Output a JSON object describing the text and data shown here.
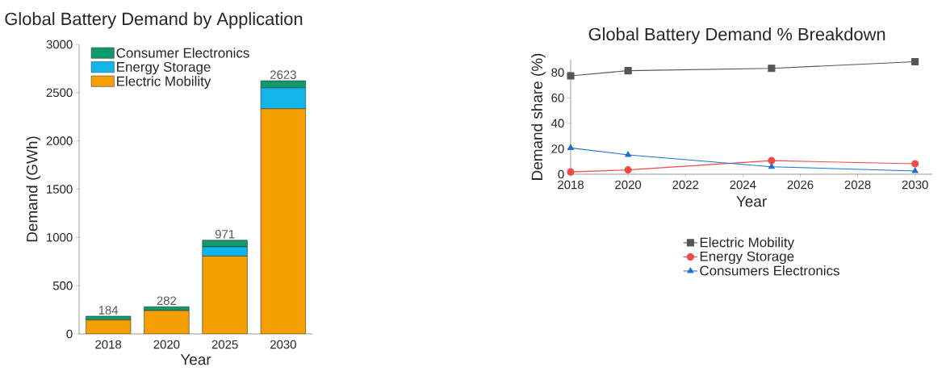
{
  "chart_data": [
    {
      "type": "bar",
      "title": "Global Battery Demand by Application",
      "xlabel": "Year",
      "ylabel": "Demand (GWh)",
      "categories": [
        "2018",
        "2020",
        "2025",
        "2030"
      ],
      "stacked": true,
      "series": [
        {
          "name": "Electric Mobility",
          "color": "#f5a000",
          "values": [
            144,
            242,
            806,
            2333
          ]
        },
        {
          "name": "Energy Storage",
          "color": "#12b5ea",
          "values": [
            null,
            null,
            97,
            217
          ]
        },
        {
          "name": "Consumer Electronics",
          "color": "#0f9a6e",
          "values": [
            40,
            40,
            68,
            73
          ]
        }
      ],
      "totals": [
        "184",
        "282",
        "971",
        "2623"
      ],
      "ylim": [
        0,
        3000
      ],
      "yticks": [
        0,
        500,
        1000,
        1500,
        2000,
        2500,
        3000
      ],
      "legend": "top left"
    },
    {
      "type": "line",
      "title": "Global Battery Demand % Breakdown",
      "xlabel": "Year",
      "ylabel": "Demand share (%)",
      "x": [
        2018,
        2020,
        2025,
        2030
      ],
      "line_style": "solid",
      "series": [
        {
          "name": "Electric Mobility",
          "color": "#555555",
          "marker": "square",
          "values": [
            77.3,
            81.4,
            83.2,
            88.4
          ]
        },
        {
          "name": "Energy Storage",
          "color": "#f04848",
          "marker": "circle",
          "values": [
            1.8,
            3.4,
            10.7,
            8.2
          ]
        },
        {
          "name": "Consumers Electronics",
          "color": "#1f6fd0",
          "marker": "triangle",
          "values": [
            20.7,
            15.2,
            5.9,
            2.5
          ]
        }
      ],
      "xlim": [
        2018,
        2030.6
      ],
      "xticks": [
        2018,
        2020,
        2022,
        2024,
        2026,
        2028,
        2030
      ],
      "ylim": [
        0,
        90
      ],
      "yticks": [
        0,
        20,
        40,
        60,
        80
      ],
      "legend": "bottom"
    }
  ]
}
